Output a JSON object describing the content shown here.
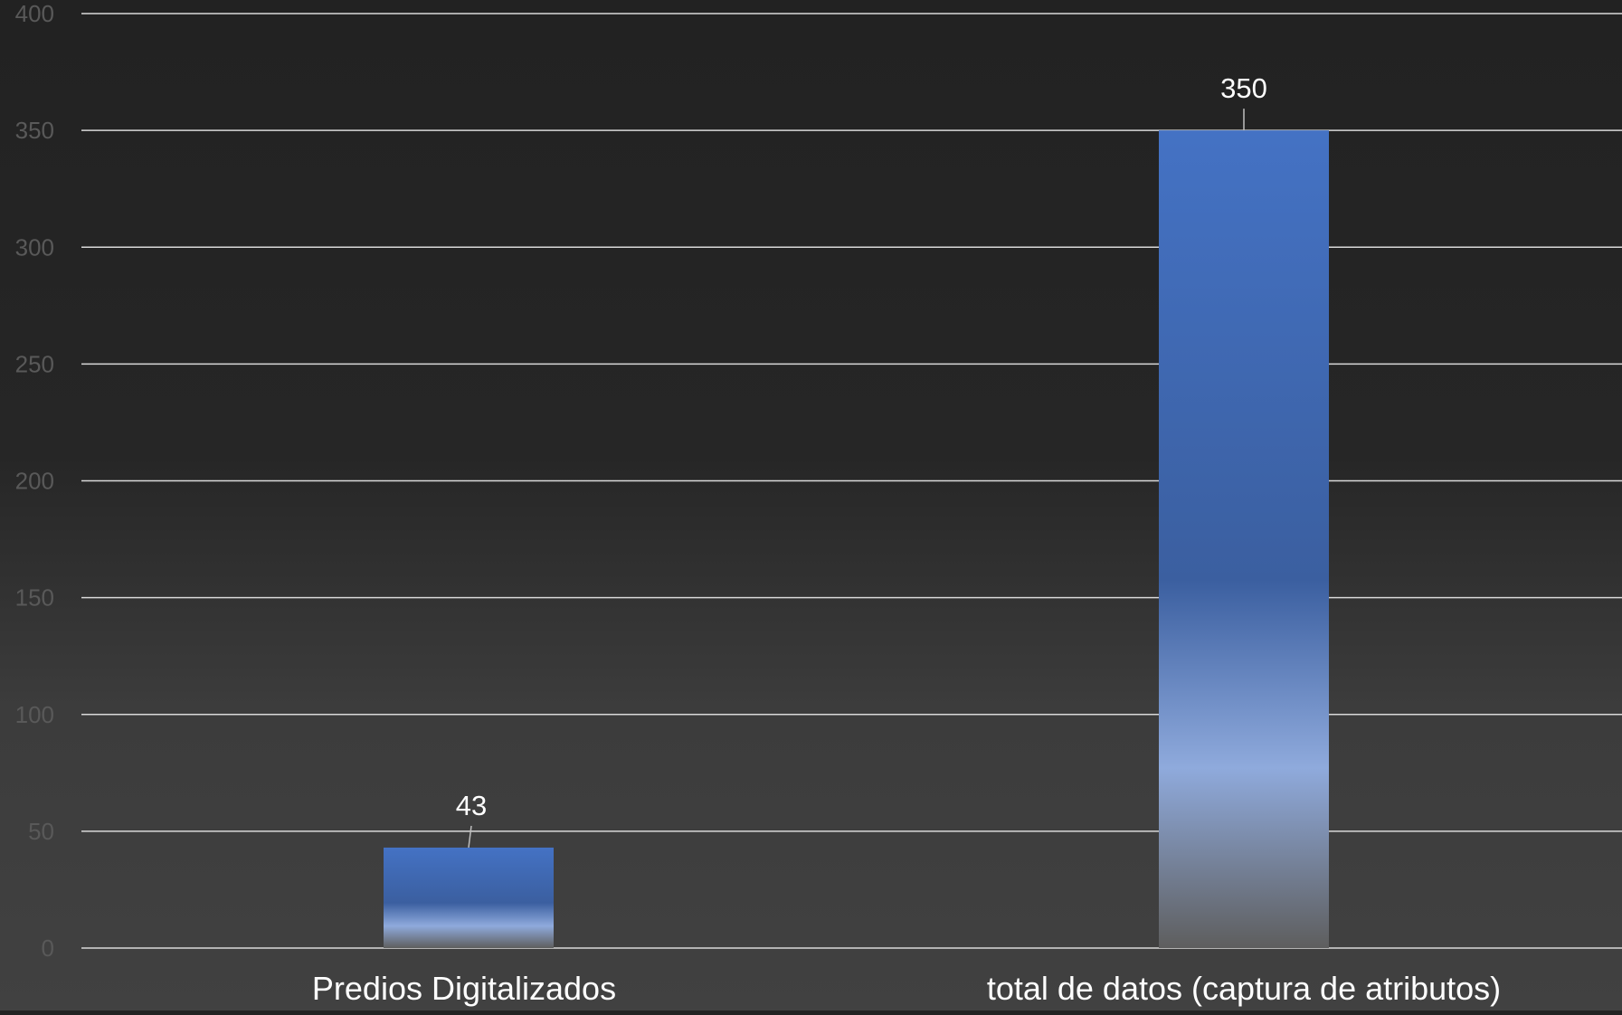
{
  "chart_data": {
    "type": "bar",
    "title": "",
    "xlabel": "",
    "ylabel": "",
    "categories": [
      "Predios Digitalizados",
      "total de datos (captura de atributos)"
    ],
    "values": [
      43,
      350
    ],
    "data_labels": [
      "43",
      "350"
    ],
    "ylim": [
      0,
      400
    ],
    "yticks": [
      0,
      50,
      100,
      150,
      200,
      250,
      300,
      350,
      400
    ],
    "grid": true,
    "legend": "none"
  },
  "colors": {
    "bar_top": "#4472c4",
    "bar_mid": "#3b5fa0",
    "bar_light": "#8faadc",
    "bar_bottom": "#5e5e5e",
    "grid": "#d9d9d9",
    "tick_label": "#595959",
    "category_label": "#ffffff",
    "data_label": "#ffffff"
  }
}
